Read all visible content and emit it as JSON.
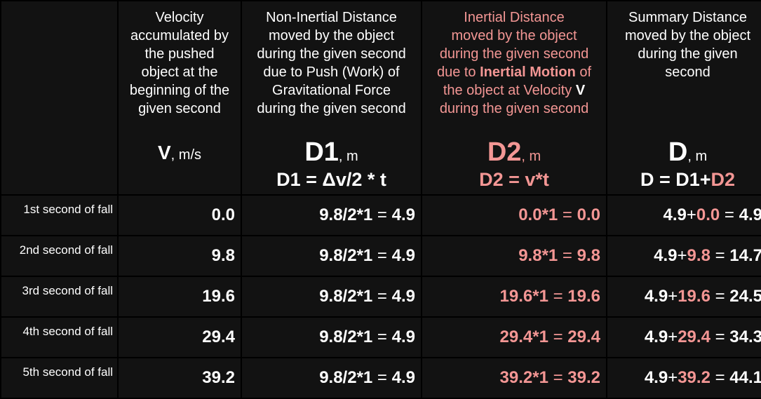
{
  "headers": {
    "col1": {
      "desc": [
        "Velocity",
        "accumulated by",
        "the pushed",
        "object at the",
        "beginning of the",
        "given second"
      ],
      "symbol": "V",
      "unit": ", m/s"
    },
    "col2": {
      "desc": [
        "Non-Inertial Distance",
        "moved by the object",
        "during the given second",
        "due to Push (Work) of",
        "Gravitational Force",
        "during the given second"
      ],
      "symbol": "D1",
      "unit": ", m",
      "formula": "D1 = Δv/2 * t"
    },
    "col3": {
      "desc_line1": "Inertial Distance",
      "desc_line2": "moved by the object",
      "desc_line3": "during the given second",
      "desc_line4_a": "due to ",
      "desc_line4_b": "Inertial Motion",
      "desc_line4_c": " of",
      "desc_line5_a": "the object at Velocity ",
      "desc_line5_b": "V",
      "desc_line6": "during the given second",
      "symbol": "D2",
      "unit": ", m",
      "formula": "D2 = v*t",
      "color": "#f39694"
    },
    "col4": {
      "desc": [
        "Summary Distance",
        "moved by the object",
        "during the given",
        "second"
      ],
      "symbol": "D",
      "unit": ", m",
      "formula_a": "D = D1+",
      "formula_b": "D2"
    }
  },
  "rows": [
    {
      "label": "1st second of fall",
      "v": "0.0",
      "d1_expr": "9.8/2*1",
      "d1_val": "4.9",
      "d2_expr": "0.0*1",
      "d2_val": "0.0",
      "d_a": "4.9",
      "d_b": "0.0",
      "d_val": "4.9"
    },
    {
      "label": "2nd second of fall",
      "v": "9.8",
      "d1_expr": "9.8/2*1",
      "d1_val": "4.9",
      "d2_expr": "9.8*1",
      "d2_val": "9.8",
      "d_a": "4.9",
      "d_b": "9.8",
      "d_val": "14.7"
    },
    {
      "label": "3rd second of fall",
      "v": "19.6",
      "d1_expr": "9.8/2*1",
      "d1_val": "4.9",
      "d2_expr": "19.6*1",
      "d2_val": "19.6",
      "d_a": "4.9",
      "d_b": "19.6",
      "d_val": "24.5"
    },
    {
      "label": "4th second of fall",
      "v": "29.4",
      "d1_expr": "9.8/2*1",
      "d1_val": "4.9",
      "d2_expr": "29.4*1",
      "d2_val": "29.4",
      "d_a": "4.9",
      "d_b": "29.4",
      "d_val": "34.3"
    },
    {
      "label": "5th second of fall",
      "v": "39.2",
      "d1_expr": "9.8/2*1",
      "d1_val": "4.9",
      "d2_expr": "39.2*1",
      "d2_val": "39.2",
      "d_a": "4.9",
      "d_b": "39.2",
      "d_val": "44.1"
    }
  ]
}
